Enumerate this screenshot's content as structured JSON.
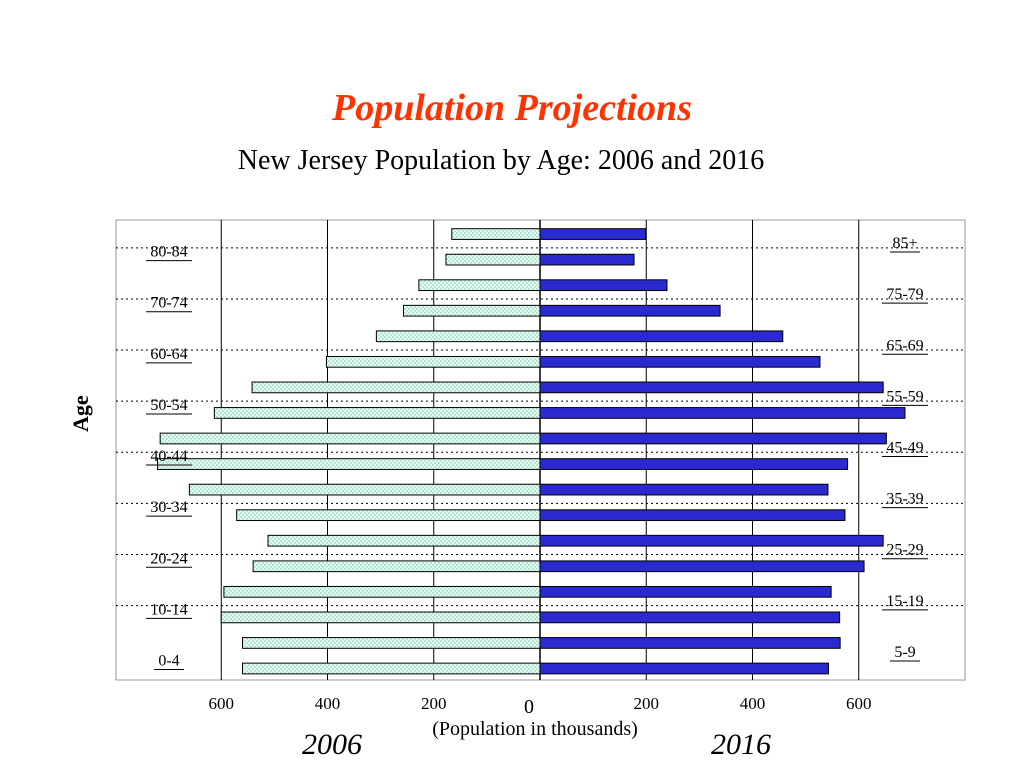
{
  "title": "Population Projections",
  "subtitle": "New Jersey Population by Age: 2006 and 2016",
  "ylabel": "Age",
  "xlabel": "(Population in thousands)",
  "year_left": "2006",
  "year_right": "2016",
  "colors": {
    "title": "#ff3300",
    "bar_2006_fill": "#e8fbf4",
    "bar_2006_dots": "#5fc9a2",
    "bar_2016_fill": "#2a2ad0",
    "bar_outline": "#000000",
    "grid": "#000000",
    "frame": "#999999"
  },
  "chart_data": {
    "type": "bar",
    "orientation": "horizontal-population-pyramid",
    "x_ticks_left": [
      "600",
      "400",
      "200"
    ],
    "x_tick_zero": "0",
    "x_ticks_right": [
      "200",
      "400",
      "600"
    ],
    "xlim": [
      -750,
      800
    ],
    "grid": true,
    "age_labels_left": [
      "80-84",
      "70-74",
      "60-64",
      "50-54",
      "40-44",
      "30-34",
      "20-24",
      "10-14",
      "0-4"
    ],
    "age_labels_right": [
      "85+",
      "75-79",
      "65-69",
      "55-59",
      "45-49",
      "35-39",
      "25-29",
      "15-19",
      "5-9"
    ],
    "categories": [
      "85+",
      "80-84",
      "75-79",
      "70-74",
      "65-69",
      "60-64",
      "55-59",
      "50-54",
      "45-49",
      "40-44",
      "35-39",
      "30-34",
      "25-29",
      "20-24",
      "15-19",
      "10-14",
      "5-9",
      "0-4"
    ],
    "series": [
      {
        "name": "2006",
        "values": [
          166,
          177,
          228,
          257,
          308,
          402,
          542,
          613,
          715,
          720,
          660,
          571,
          512,
          540,
          595,
          600,
          560,
          560
        ]
      },
      {
        "name": "2016",
        "values": [
          199,
          177,
          239,
          339,
          457,
          527,
          646,
          687,
          652,
          579,
          542,
          574,
          646,
          610,
          548,
          564,
          565,
          543
        ]
      }
    ]
  }
}
